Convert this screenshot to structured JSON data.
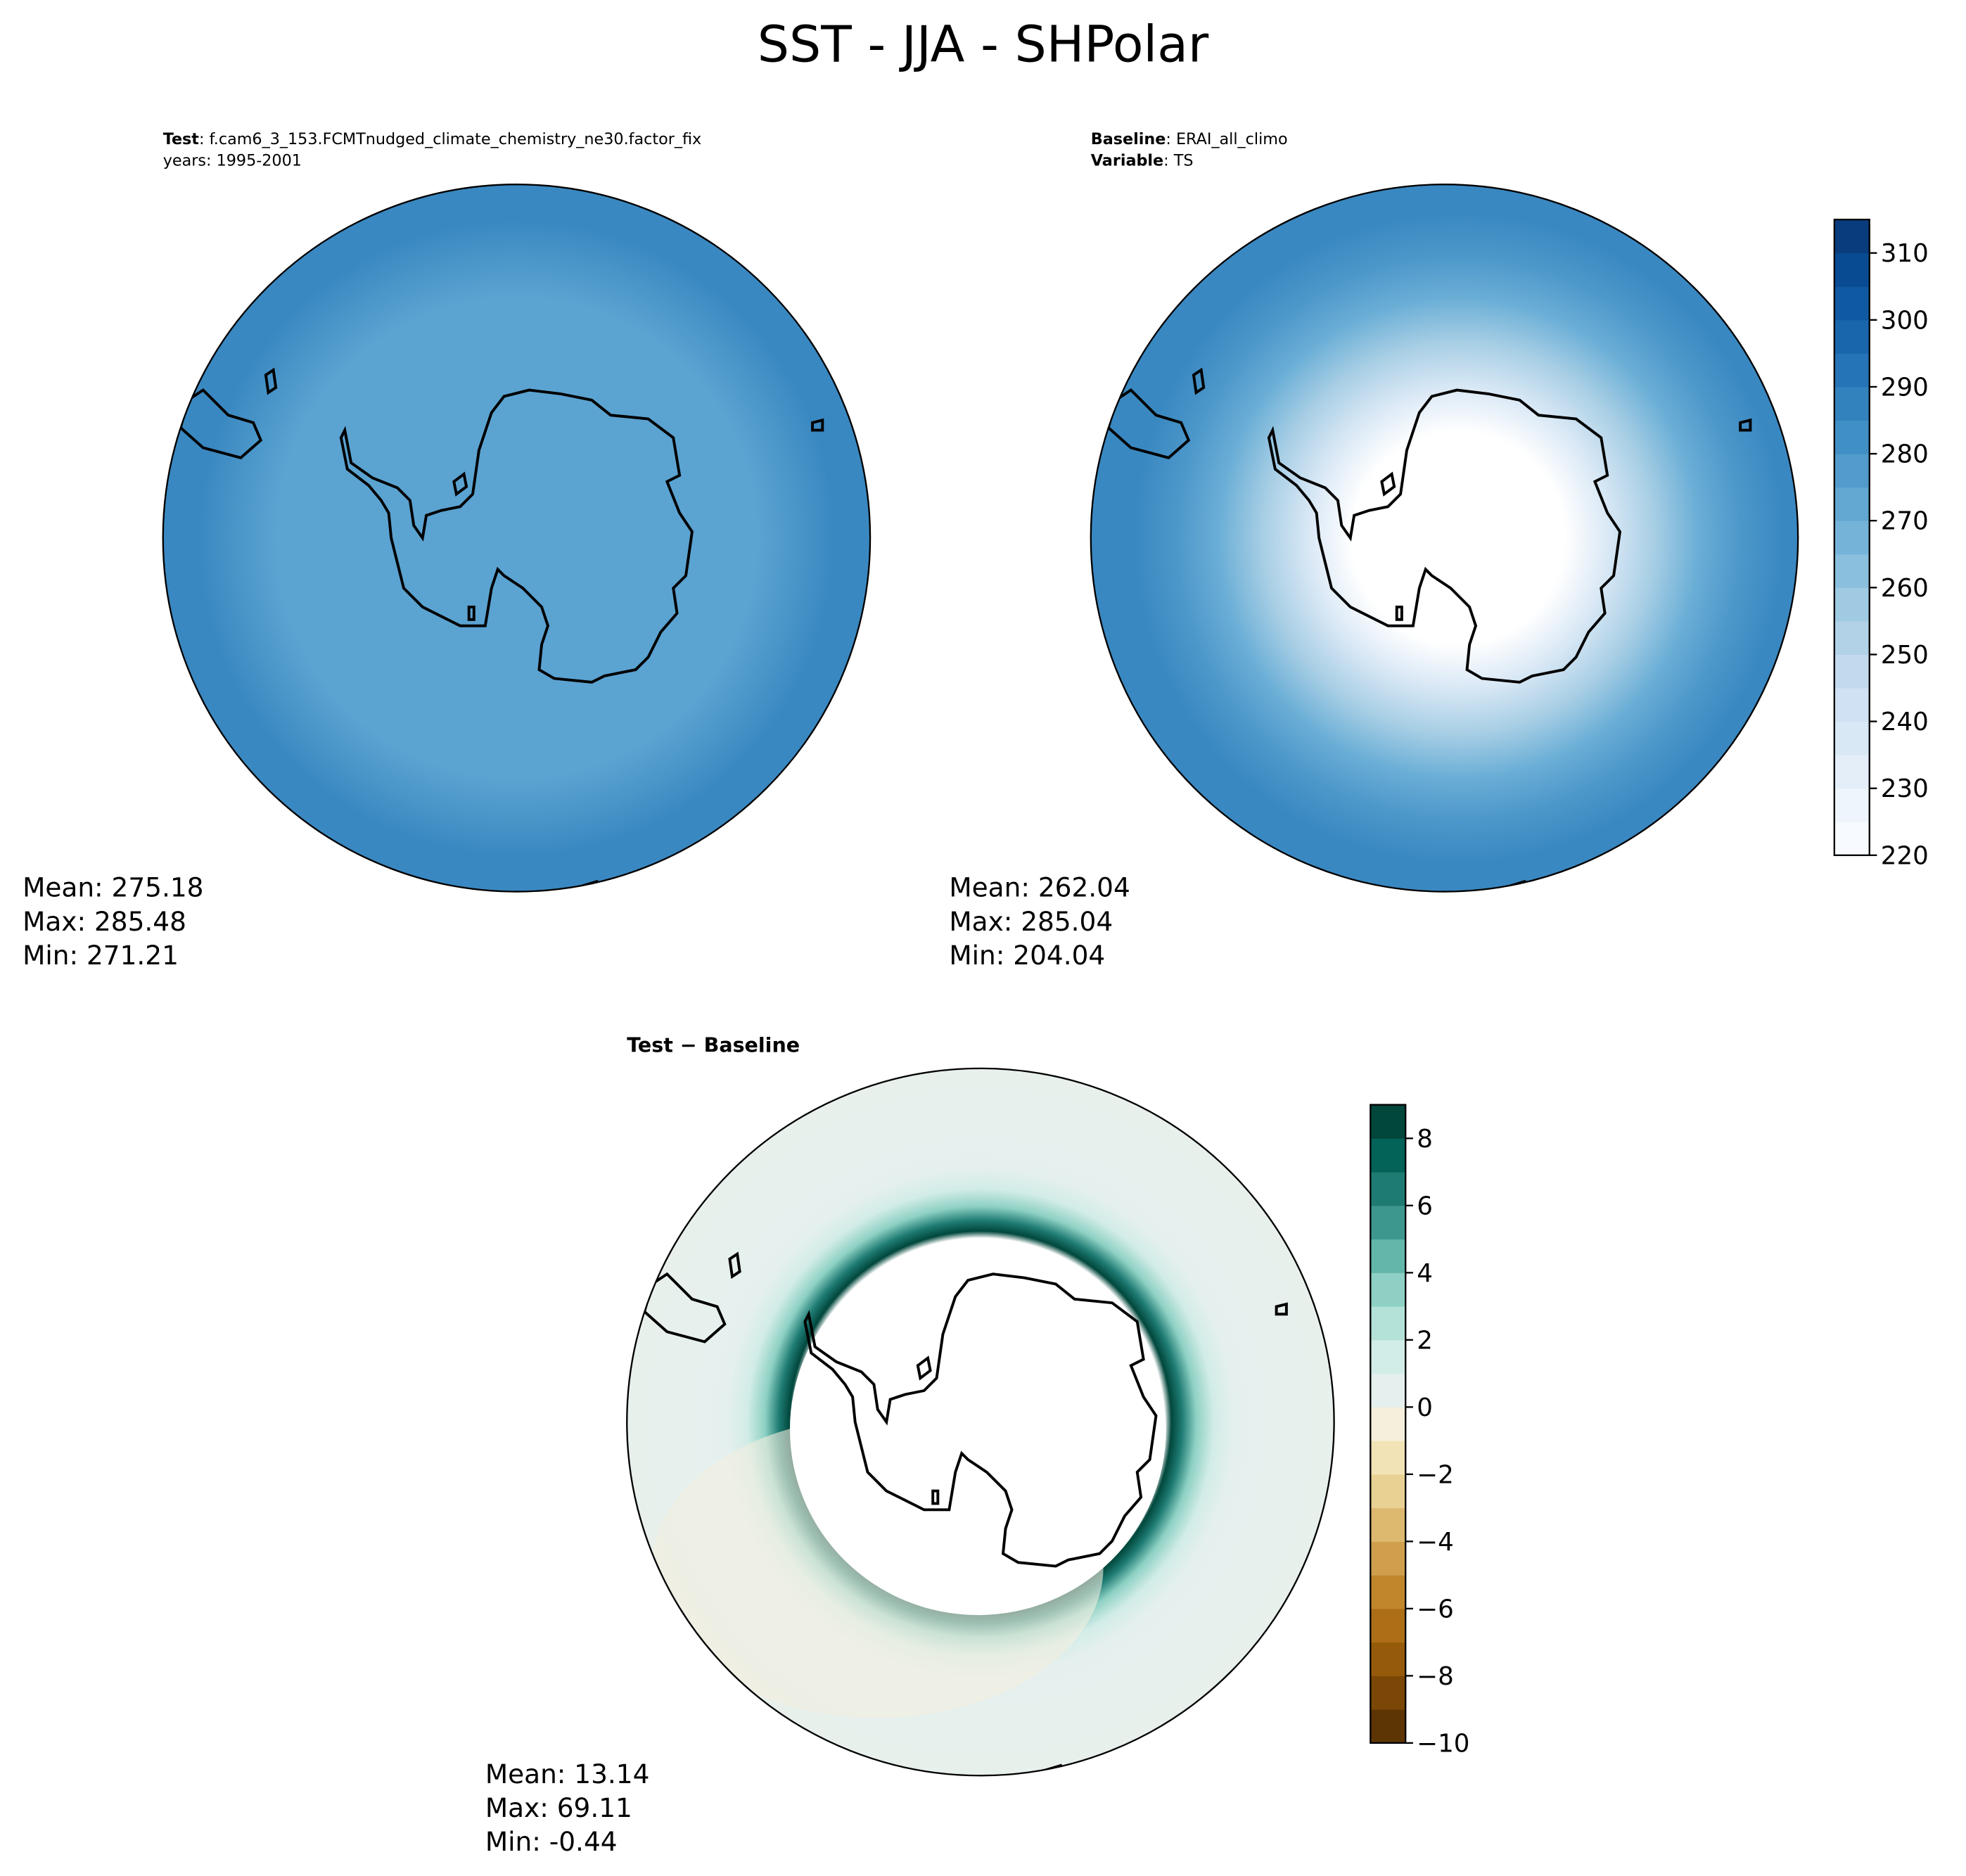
{
  "title": "SST - JJA - SHPolar",
  "panels": [
    {
      "header": [
        {
          "label": "Test",
          "value": ": f.cam6_3_153.FCMTnudged_climate_chemistry_ne30.factor_fix"
        },
        {
          "label": "",
          "value": "years: 1995-2001"
        }
      ],
      "stats": [
        "Mean: 275.18",
        "Max: 285.48",
        "Min: 271.21"
      ]
    },
    {
      "header": [
        {
          "label": "Baseline",
          "value": ": ERAI_all_climo"
        },
        {
          "label": "Variable",
          "value": ": TS"
        }
      ],
      "stats": [
        "Mean: 262.04",
        "Max: 285.04",
        "Min: 204.04"
      ]
    },
    {
      "header": [
        {
          "label": "Test − Baseline",
          "value": ""
        }
      ],
      "stats": [
        "Mean: 13.14",
        "Max: 69.11",
        "Min: -0.44"
      ]
    }
  ],
  "colorbars": [
    {
      "ylim": [
        220,
        315
      ],
      "yticks": [
        220,
        230,
        240,
        250,
        260,
        270,
        280,
        290,
        300,
        310
      ],
      "colors": [
        "#f7fbff",
        "#eef5fc",
        "#e3eef9",
        "#d9e8f5",
        "#cfe1f2",
        "#c2d9ee",
        "#b2d2e8",
        "#9fcae1",
        "#8abfdd",
        "#75b4d8",
        "#62a8d3",
        "#519ccc",
        "#4090c5",
        "#3282be",
        "#2474b7",
        "#1966ad",
        "#0e59a2",
        "#084b93",
        "#083c7d"
      ]
    },
    {
      "ylim": [
        -10,
        9
      ],
      "yticks": [
        {
          "value": -10,
          "label": "−10"
        },
        {
          "value": -8,
          "label": "−8"
        },
        {
          "value": -6,
          "label": "−6"
        },
        {
          "value": -4,
          "label": "−4"
        },
        {
          "value": -2,
          "label": "−2"
        },
        0,
        2,
        4,
        6,
        8
      ],
      "colors": [
        "#5d3505",
        "#7a4706",
        "#955b0b",
        "#ad6e17",
        "#c1862c",
        "#cf9f4d",
        "#dcb96f",
        "#e8d193",
        "#f1e3b6",
        "#f5efdc",
        "#e5f0ee",
        "#d2ece7",
        "#b4e2d9",
        "#8ed1c4",
        "#63b6aa",
        "#3d978f",
        "#1e7b73",
        "#046358",
        "#01473c"
      ]
    }
  ]
}
